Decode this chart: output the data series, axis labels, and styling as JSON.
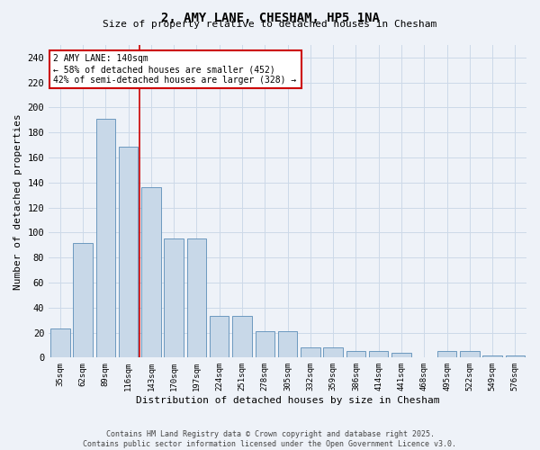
{
  "title": "2, AMY LANE, CHESHAM, HP5 1NA",
  "subtitle": "Size of property relative to detached houses in Chesham",
  "xlabel": "Distribution of detached houses by size in Chesham",
  "ylabel": "Number of detached properties",
  "categories": [
    "35sqm",
    "62sqm",
    "89sqm",
    "116sqm",
    "143sqm",
    "170sqm",
    "197sqm",
    "224sqm",
    "251sqm",
    "278sqm",
    "305sqm",
    "332sqm",
    "359sqm",
    "386sqm",
    "414sqm",
    "441sqm",
    "468sqm",
    "495sqm",
    "522sqm",
    "549sqm",
    "576sqm"
  ],
  "values": [
    23,
    92,
    191,
    169,
    136,
    95,
    95,
    33,
    33,
    21,
    21,
    8,
    8,
    5,
    5,
    4,
    0,
    5,
    5,
    2,
    2
  ],
  "bar_color": "#c8d8e8",
  "bar_edge_color": "#5b8db8",
  "grid_color": "#ccd9e8",
  "background_color": "#eef2f8",
  "property_line_color": "#cc0000",
  "annotation_text": "2 AMY LANE: 140sqm\n← 58% of detached houses are smaller (452)\n42% of semi-detached houses are larger (328) →",
  "annotation_box_color": "#ffffff",
  "annotation_edge_color": "#cc0000",
  "ylim": [
    0,
    250
  ],
  "yticks": [
    0,
    20,
    40,
    60,
    80,
    100,
    120,
    140,
    160,
    180,
    200,
    220,
    240
  ],
  "footer_line1": "Contains HM Land Registry data © Crown copyright and database right 2025.",
  "footer_line2": "Contains public sector information licensed under the Open Government Licence v3.0."
}
